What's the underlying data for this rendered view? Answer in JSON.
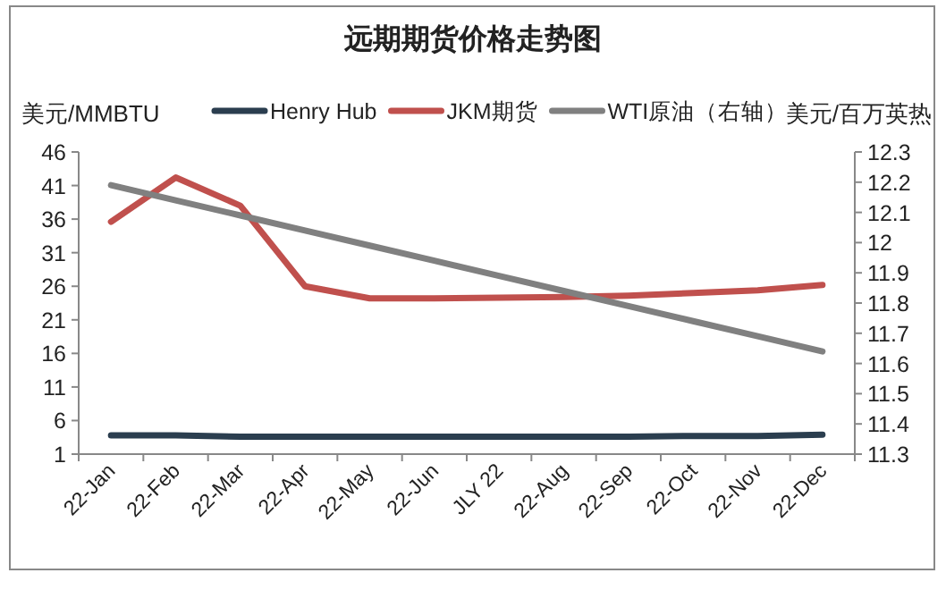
{
  "chart_data": {
    "type": "line",
    "title": "远期期货价格走势图",
    "ylabel": "美元/MMBTU",
    "y2label": "美元/百万英热",
    "categories": [
      "22-Jan",
      "22-Feb",
      "22-Mar",
      "22-Apr",
      "22-May",
      "22-Jun",
      "JLY 22",
      "22-Aug",
      "22-Sep",
      "22-Oct",
      "22-Nov",
      "22-Dec"
    ],
    "series": [
      {
        "name": "Henry Hub",
        "color": "#2b3e4f",
        "values": [
          3.8,
          3.8,
          3.6,
          3.6,
          3.6,
          3.6,
          3.6,
          3.6,
          3.6,
          3.7,
          3.7,
          3.9
        ]
      },
      {
        "name": "JKM期货",
        "color": "#c0504d",
        "values": [
          35.6,
          42.2,
          38,
          26,
          24.2,
          24.2,
          24.3,
          24.4,
          24.6,
          25,
          25.4,
          26.2
        ]
      },
      {
        "name": "WTI原油（右轴）",
        "color": "#808080",
        "axis": "y2",
        "values": [
          12.19,
          12.14,
          12.09,
          12.04,
          11.99,
          11.94,
          11.89,
          11.84,
          11.79,
          11.74,
          11.69,
          11.64
        ]
      }
    ],
    "ylim": [
      1,
      46
    ],
    "yticks": [
      1,
      6,
      11,
      16,
      21,
      26,
      31,
      36,
      41,
      46
    ],
    "y2lim": [
      11.3,
      12.3
    ],
    "y2ticks": [
      11.3,
      11.4,
      11.5,
      11.6,
      11.7,
      11.8,
      11.9,
      12,
      12.1,
      12.2,
      12.3
    ],
    "legend": "top",
    "grid": false,
    "marker": "none",
    "line_style": "solid"
  }
}
